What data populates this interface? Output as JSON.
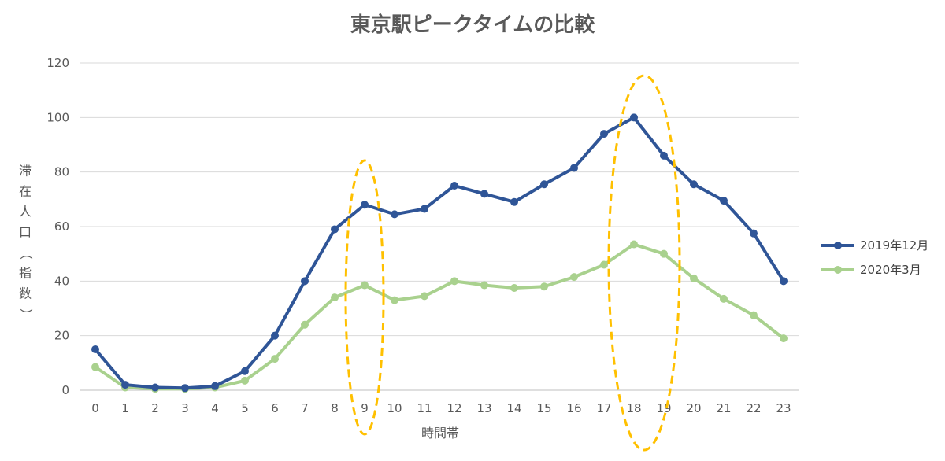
{
  "chart_data": {
    "type": "line",
    "title": "東京駅ピークタイムの比較",
    "xlabel": "時間帯",
    "ylabel": "滞在人口（指数）",
    "categories": [
      "0",
      "1",
      "2",
      "3",
      "4",
      "5",
      "6",
      "7",
      "8",
      "9",
      "10",
      "11",
      "12",
      "13",
      "14",
      "15",
      "16",
      "17",
      "18",
      "19",
      "20",
      "21",
      "22",
      "23"
    ],
    "ylim": [
      0,
      120
    ],
    "yticks": [
      "0",
      "20",
      "40",
      "60",
      "80",
      "100",
      "120"
    ],
    "grid": true,
    "legend_position": "right",
    "series": [
      {
        "name": "2019年12月",
        "color": "#2F5597",
        "values": [
          15,
          2,
          1,
          0.8,
          1.5,
          7,
          20,
          40,
          59,
          68,
          64.5,
          66.5,
          75,
          72,
          69,
          75.5,
          81.5,
          94,
          100,
          86,
          75.5,
          69.5,
          57.5,
          40
        ]
      },
      {
        "name": "2020年3月",
        "color": "#A9D18E",
        "values": [
          8.5,
          1,
          0.5,
          0.5,
          1,
          3.5,
          11.5,
          24,
          34,
          38.5,
          33,
          34.5,
          40,
          38.5,
          37.5,
          38,
          41.5,
          46,
          53.5,
          50,
          41,
          33.5,
          27.5,
          19
        ]
      }
    ],
    "highlights": [
      {
        "category": "9",
        "color": "#FFC000"
      },
      {
        "category": "18",
        "color": "#FFC000"
      }
    ]
  }
}
